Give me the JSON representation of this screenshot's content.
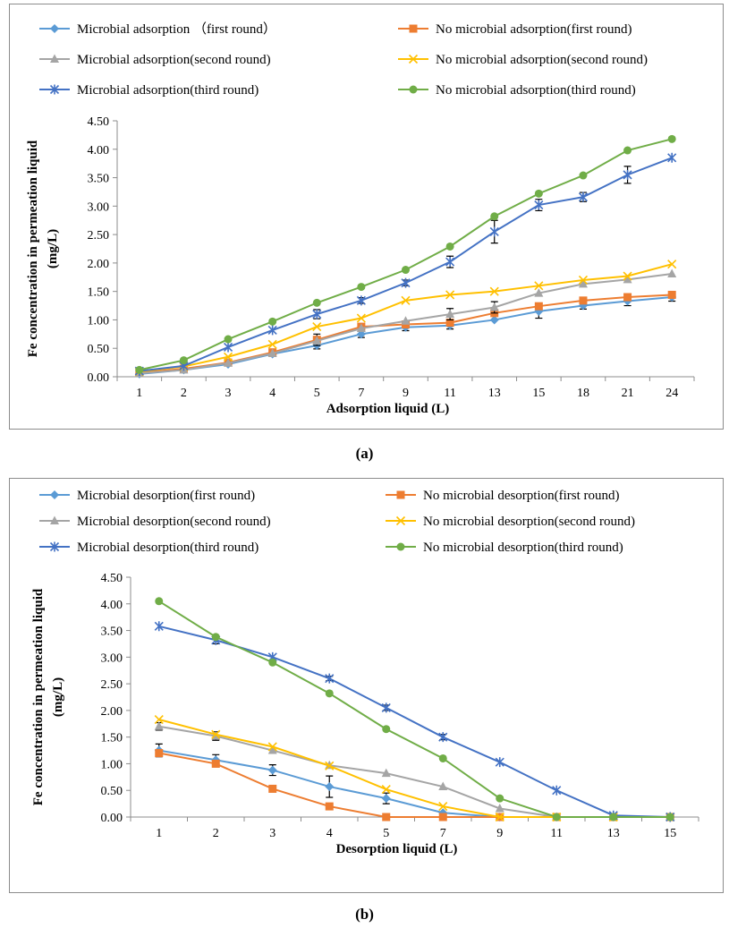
{
  "chart_data": [
    {
      "id": "a",
      "type": "line",
      "caption": "(a)",
      "categories": [
        "1",
        "2",
        "3",
        "4",
        "5",
        "7",
        "9",
        "11",
        "13",
        "15",
        "18",
        "21",
        "24"
      ],
      "xlabel": "Adsorption  liquid (L)",
      "ylabel_line1": "Fe concentration in permeation liquid",
      "ylabel_line2": "(mg/L)",
      "ylim": [
        0,
        4.5
      ],
      "yticks": [
        "0.00",
        "0.50",
        "1.00",
        "1.50",
        "2.00",
        "2.50",
        "3.00",
        "3.50",
        "4.00",
        "4.50"
      ],
      "grid": false,
      "legend_position": "top",
      "series": [
        {
          "name": "Microbial adsorption （first round）",
          "color": "#5b9bd5",
          "marker": "diamond",
          "values": [
            0.05,
            0.12,
            0.22,
            0.4,
            0.55,
            0.75,
            0.87,
            0.9,
            1.0,
            1.15,
            1.25,
            1.33,
            1.4
          ],
          "errors": [
            0,
            0,
            0,
            0,
            0.06,
            0.06,
            0.06,
            0.06,
            0,
            0.12,
            0.06,
            0.08,
            0.07
          ]
        },
        {
          "name": "No microbial adsorption(first round)",
          "color": "#ed7d31",
          "marker": "square",
          "values": [
            0.07,
            0.14,
            0.25,
            0.43,
            0.65,
            0.88,
            0.92,
            0.95,
            1.12,
            1.24,
            1.34,
            1.4,
            1.44
          ],
          "errors": [
            0,
            0,
            0,
            0,
            0.1,
            0,
            0,
            0,
            0,
            0,
            0,
            0,
            0
          ]
        },
        {
          "name": "Microbial adsorption(second round)",
          "color": "#a5a5a5",
          "marker": "triangle",
          "values": [
            0.06,
            0.12,
            0.24,
            0.41,
            0.63,
            0.85,
            0.98,
            1.1,
            1.22,
            1.47,
            1.63,
            1.71,
            1.81
          ],
          "errors": [
            0,
            0,
            0,
            0,
            0,
            0,
            0,
            0.1,
            0.1,
            0,
            0,
            0,
            0
          ]
        },
        {
          "name": "No microbial adsorption(second round)",
          "color": "#ffc000",
          "marker": "x",
          "values": [
            0.09,
            0.18,
            0.35,
            0.57,
            0.88,
            1.03,
            1.34,
            1.44,
            1.5,
            1.6,
            1.7,
            1.77,
            1.98
          ],
          "errors": [
            0,
            0,
            0,
            0,
            0,
            0,
            0,
            0,
            0,
            0,
            0,
            0,
            0
          ]
        },
        {
          "name": "Microbial adsorption(third round)",
          "color": "#4472c4",
          "marker": "star",
          "values": [
            0.1,
            0.19,
            0.52,
            0.82,
            1.1,
            1.34,
            1.65,
            2.02,
            2.55,
            3.02,
            3.16,
            3.55,
            3.85
          ],
          "errors": [
            0,
            0,
            0,
            0,
            0.08,
            0.05,
            0.05,
            0.1,
            0.2,
            0.1,
            0.08,
            0.15,
            0
          ]
        },
        {
          "name": "No microbial adsorption(third round)",
          "color": "#70ad47",
          "marker": "circle",
          "values": [
            0.12,
            0.29,
            0.66,
            0.97,
            1.3,
            1.58,
            1.88,
            2.29,
            2.82,
            3.22,
            3.54,
            3.98,
            4.18
          ],
          "errors": [
            0,
            0,
            0,
            0,
            0,
            0,
            0,
            0,
            0,
            0,
            0,
            0,
            0
          ]
        }
      ]
    },
    {
      "id": "b",
      "type": "line",
      "caption": "(b)",
      "categories": [
        "1",
        "2",
        "3",
        "4",
        "5",
        "7",
        "9",
        "11",
        "13",
        "15"
      ],
      "xlabel": "Desorption liquid (L)",
      "ylabel_line1": "Fe concentration in permeation liquid",
      "ylabel_line2": "(mg/L)",
      "ylim": [
        0,
        4.5
      ],
      "yticks": [
        "0.00",
        "0.50",
        "1.00",
        "1.50",
        "2.00",
        "2.50",
        "3.00",
        "3.50",
        "4.00",
        "4.50"
      ],
      "grid": false,
      "legend_position": "top",
      "series": [
        {
          "name": "Microbial desorption(first round)",
          "color": "#5b9bd5",
          "marker": "diamond",
          "values": [
            1.25,
            1.07,
            0.88,
            0.57,
            0.35,
            0.08,
            0,
            0,
            0,
            0
          ],
          "errors": [
            0.12,
            0.1,
            0.1,
            0.2,
            0.1,
            0,
            0,
            0,
            0,
            0
          ]
        },
        {
          "name": "No microbial desorption(first round)",
          "color": "#ed7d31",
          "marker": "square",
          "values": [
            1.2,
            1.0,
            0.53,
            0.2,
            0,
            0,
            0,
            0,
            0,
            0
          ],
          "errors": [
            0,
            0,
            0,
            0,
            0,
            0,
            0,
            0,
            0,
            0
          ]
        },
        {
          "name": "Microbial desorption(second round)",
          "color": "#a5a5a5",
          "marker": "triangle",
          "values": [
            1.7,
            1.52,
            1.25,
            0.97,
            0.82,
            0.57,
            0.16,
            0,
            0,
            0
          ],
          "errors": [
            0.07,
            0.08,
            0,
            0,
            0,
            0,
            0,
            0,
            0,
            0
          ]
        },
        {
          "name": "No microbial desorption(second round)",
          "color": "#ffc000",
          "marker": "x",
          "values": [
            1.83,
            1.55,
            1.32,
            0.96,
            0.52,
            0.2,
            0,
            0,
            0,
            0
          ],
          "errors": [
            0,
            0,
            0,
            0,
            0,
            0,
            0,
            0,
            0,
            0
          ]
        },
        {
          "name": "Microbial desorption(third round)",
          "color": "#4472c4",
          "marker": "star",
          "values": [
            3.58,
            3.32,
            3.0,
            2.6,
            2.05,
            1.5,
            1.03,
            0.5,
            0.03,
            0
          ],
          "errors": [
            0,
            0.07,
            0,
            0.04,
            0.05,
            0.05,
            0,
            0,
            0,
            0
          ]
        },
        {
          "name": "No microbial desorption(third round)",
          "color": "#70ad47",
          "marker": "circle",
          "values": [
            4.05,
            3.38,
            2.9,
            2.32,
            1.65,
            1.1,
            0.35,
            0,
            0,
            0
          ],
          "errors": [
            0,
            0,
            0,
            0,
            0,
            0,
            0,
            0,
            0,
            0
          ]
        }
      ]
    }
  ]
}
